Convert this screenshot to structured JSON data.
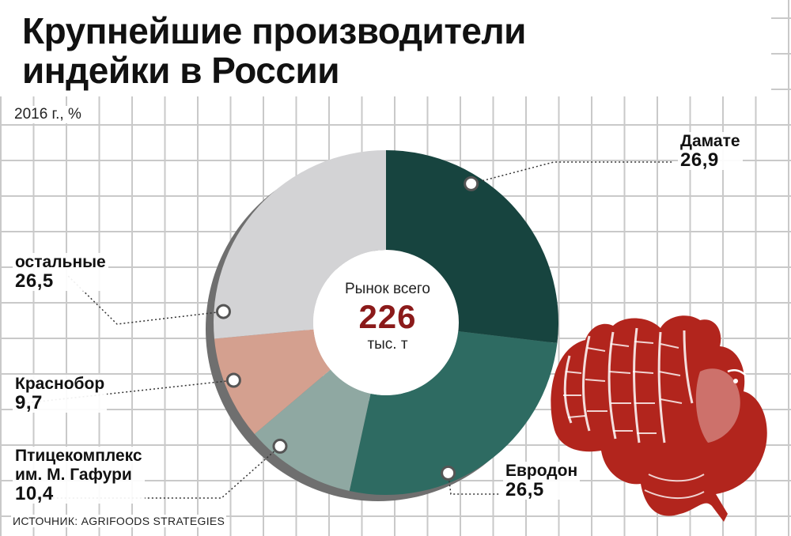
{
  "title_lines": [
    "Крупнейшие производители",
    "индейки в России"
  ],
  "subtitle": "2016 г., %",
  "source": "ИСТОЧНИК: AGRIFOODS STRATEGIES",
  "center": {
    "top": "Рынок всего",
    "total": "226",
    "unit": "тыс. т"
  },
  "labels": {
    "damate": {
      "name": "Дамате",
      "value": "26,9"
    },
    "evrodon": {
      "name": "Евродон",
      "value": "26,5"
    },
    "gafuri": {
      "name_lines": [
        "Птицекомплекс",
        "им. М. Гафури"
      ],
      "value": "10,4"
    },
    "krasnobor": {
      "name": "Краснобор",
      "value": "9,7"
    },
    "ostalnye": {
      "name": "остальные",
      "value": "26,5"
    }
  },
  "colors": {
    "damate": "#17443f",
    "evrodon": "#2e6b62",
    "gafuri": "#8fa8a2",
    "krasnobor": "#d4a08f",
    "ostalnye": "#d3d3d5",
    "total_text": "#8b1a1a",
    "illustration": "#b2251d"
  },
  "illustration": "turkey-illustration",
  "chart_data": {
    "type": "pie",
    "donut": true,
    "title": "Крупнейшие производители индейки в России",
    "subtitle": "2016 г., %",
    "unit": "%",
    "total": {
      "label": "Рынок всего",
      "value": 226,
      "unit": "тыс. т"
    },
    "categories": [
      "Дамате",
      "Евродон",
      "Птицекомплекс им. М. Гафури",
      "Краснобор",
      "остальные"
    ],
    "values": [
      26.9,
      26.5,
      10.4,
      9.7,
      26.5
    ],
    "source": "ИСТОЧНИК: AGRIFOODS STRATEGIES"
  }
}
